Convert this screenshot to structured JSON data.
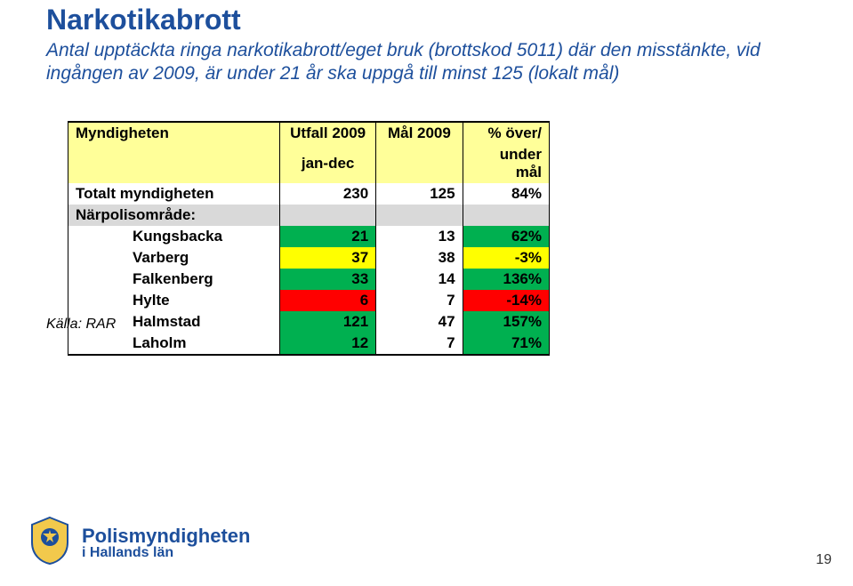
{
  "title": "Narkotikabrott",
  "subtitle": "Antal upptäckta ringa narkotikabrott/eget bruk (brottskod 5011) där den misstänkte, vid ingången av 2009, är under 21 år ska uppgå till minst 125 (lokalt mål)",
  "source": "Källa: RAR",
  "pageNumber": "19",
  "footer": {
    "line1": "Polismyndigheten",
    "line2": "i Hallands län"
  },
  "table": {
    "headers": {
      "col1": "Myndigheten",
      "col2_l1": "Utfall 2009",
      "col2_l2": "jan-dec",
      "col3": "Mål 2009",
      "col4_l1": "% över/",
      "col4_l2": "under mål"
    },
    "total": {
      "label": "Totalt myndigheten",
      "utfall": "230",
      "mal": "125",
      "pct": "84%"
    },
    "sectionLabel": "Närpolisområde:",
    "rows": [
      {
        "label": "Kungsbacka",
        "utfall": "21",
        "mal": "13",
        "pct": "62%",
        "bg": "#00b050"
      },
      {
        "label": "Varberg",
        "utfall": "37",
        "mal": "38",
        "pct": "-3%",
        "bg": "#ffff00"
      },
      {
        "label": "Falkenberg",
        "utfall": "33",
        "mal": "14",
        "pct": "136%",
        "bg": "#00b050"
      },
      {
        "label": "Hylte",
        "utfall": "6",
        "mal": "7",
        "pct": "-14%",
        "bg": "#ff0000"
      },
      {
        "label": "Halmstad",
        "utfall": "121",
        "mal": "47",
        "pct": "157%",
        "bg": "#00b050"
      },
      {
        "label": "Laholm",
        "utfall": "12",
        "mal": "7",
        "pct": "71%",
        "bg": "#00b050"
      }
    ]
  },
  "colors": {
    "headerBg": "#ffff99",
    "sectionBg": "#d9d9d9",
    "titleColor": "#1d4f9c"
  }
}
